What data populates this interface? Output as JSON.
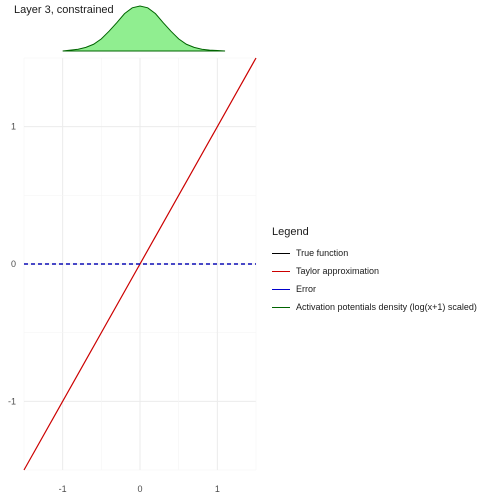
{
  "title": "Layer 3, constrained",
  "chart_data": {
    "type": "line",
    "xlim": [
      -1.5,
      1.5
    ],
    "ylim": [
      -1.5,
      1.5
    ],
    "x_ticks": [
      -1,
      0,
      1
    ],
    "y_ticks": [
      -1,
      0,
      1
    ],
    "series": [
      {
        "name": "True function",
        "color": "#000000",
        "dash": true,
        "x": [
          -1.5,
          1.5
        ],
        "y": [
          0,
          0
        ]
      },
      {
        "name": "Taylor approximation",
        "color": "#cc0000",
        "dash": false,
        "x": [
          -1.5,
          1.5
        ],
        "y": [
          -1.5,
          1.5
        ]
      },
      {
        "name": "Error",
        "color": "#0000cc",
        "dash": true,
        "x": [
          -1.5,
          1.5
        ],
        "y": [
          0,
          0
        ]
      }
    ],
    "density": {
      "name": "Activation potentials density (log(x+1) scaled)",
      "color": "#006400",
      "fill": "#90ee90",
      "x": [
        -1.0,
        -0.9,
        -0.8,
        -0.7,
        -0.6,
        -0.5,
        -0.4,
        -0.3,
        -0.2,
        -0.1,
        0.0,
        0.1,
        0.2,
        0.3,
        0.4,
        0.5,
        0.6,
        0.7,
        0.8,
        0.9,
        1.0,
        1.1
      ],
      "y": [
        0.0,
        0.02,
        0.04,
        0.08,
        0.15,
        0.27,
        0.44,
        0.63,
        0.83,
        0.96,
        1.0,
        0.96,
        0.83,
        0.63,
        0.44,
        0.27,
        0.15,
        0.08,
        0.04,
        0.02,
        0.01,
        0.0
      ]
    }
  },
  "legend": {
    "title": "Legend",
    "items": [
      {
        "label": "True function",
        "color": "#000000"
      },
      {
        "label": "Taylor approximation",
        "color": "#cc0000"
      },
      {
        "label": "Error",
        "color": "#0000cc"
      },
      {
        "label": "Activation potentials density (log(x+1) scaled)",
        "color": "#006400"
      }
    ]
  }
}
